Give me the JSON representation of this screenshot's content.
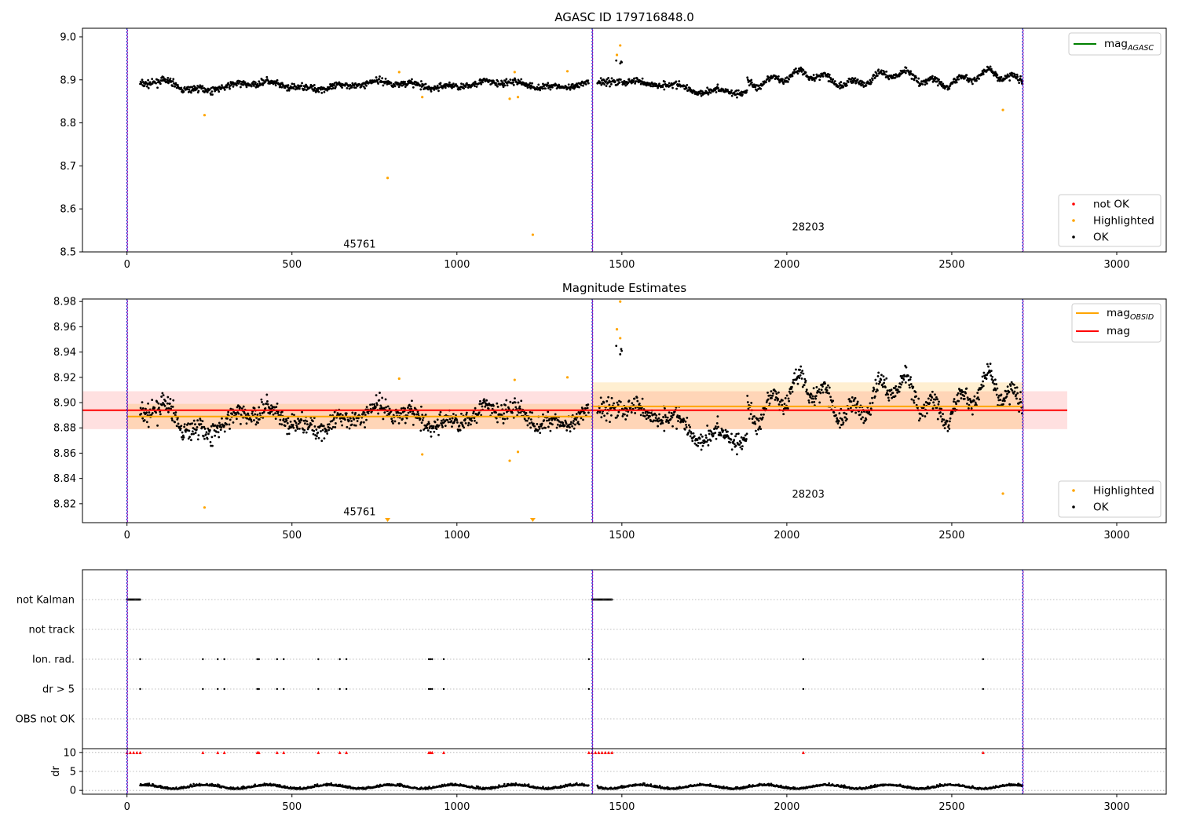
{
  "chart_data": [
    {
      "panel": "top",
      "type": "scatter",
      "title": "AGASC ID 179716848.0",
      "xlim": [
        -135,
        3150
      ],
      "ylim": [
        8.5,
        9.02
      ],
      "xticks": [
        0,
        500,
        1000,
        1500,
        2000,
        2500,
        3000
      ],
      "yticks": [
        "8.5",
        "8.6",
        "8.7",
        "8.8",
        "8.9",
        "9.0"
      ],
      "obsid_boundaries": [
        0,
        1410,
        2715
      ],
      "obsid_labels": [
        {
          "text": "45761",
          "x": 705,
          "y": 8.51
        },
        {
          "text": "28203",
          "x": 2065,
          "y": 8.55
        }
      ],
      "line_legend": [
        {
          "name": "mag",
          "sub": "AGASC",
          "color": "#008000"
        }
      ],
      "point_legend": [
        {
          "name": "not OK",
          "color": "#ff0000"
        },
        {
          "name": "Highlighted",
          "color": "#ffa500"
        },
        {
          "name": "OK",
          "color": "#000000"
        }
      ],
      "ok_series": {
        "description": "OK points",
        "x_start": [
          40,
          1425
        ],
        "segments": [
          {
            "x_range": [
              40,
              1400
            ],
            "mean": 8.89,
            "scatter": 0.01
          },
          {
            "x_range": [
              1425,
              1850
            ],
            "mean": 8.885,
            "scatter": 0.012
          },
          {
            "x_range": [
              1850,
              2715
            ],
            "mean": 8.91,
            "scatter": 0.014
          }
        ]
      },
      "highlighted": [
        {
          "x": 235,
          "y": 8.818
        },
        {
          "x": 790,
          "y": 8.672
        },
        {
          "x": 825,
          "y": 8.918
        },
        {
          "x": 895,
          "y": 8.86
        },
        {
          "x": 1160,
          "y": 8.856
        },
        {
          "x": 1175,
          "y": 8.918
        },
        {
          "x": 1185,
          "y": 8.86
        },
        {
          "x": 1230,
          "y": 8.54
        },
        {
          "x": 1335,
          "y": 8.92
        },
        {
          "x": 1485,
          "y": 8.958
        },
        {
          "x": 1495,
          "y": 8.98
        },
        {
          "x": 2655,
          "y": 8.83
        }
      ]
    },
    {
      "panel": "middle",
      "type": "scatter",
      "title": "Magnitude Estimates",
      "xlim": [
        -135,
        3150
      ],
      "ylim": [
        8.805,
        8.982
      ],
      "xticks": [
        0,
        500,
        1000,
        1500,
        2000,
        2500,
        3000
      ],
      "yticks": [
        "8.82",
        "8.84",
        "8.86",
        "8.88",
        "8.90",
        "8.92",
        "8.94",
        "8.96",
        "8.98"
      ],
      "obsid_boundaries": [
        0,
        1410,
        2715
      ],
      "obsid_labels": [
        {
          "text": "45761",
          "x": 705,
          "y": 8.811
        },
        {
          "text": "28203",
          "x": 2065,
          "y": 8.825
        }
      ],
      "line_legend": [
        {
          "name": "mag",
          "sub": "OBSID",
          "color": "#ffa500"
        },
        {
          "name": "mag",
          "sub": "",
          "color": "#ff0000"
        }
      ],
      "point_legend": [
        {
          "name": "Highlighted",
          "color": "#ffa500"
        },
        {
          "name": "OK",
          "color": "#000000"
        }
      ],
      "mag": {
        "value": 8.894,
        "band": [
          8.879,
          8.909
        ],
        "x_range": [
          -135,
          2850
        ]
      },
      "mag_obsid": [
        {
          "x_range": [
            0,
            1410
          ],
          "value": 8.889,
          "band": [
            8.879,
            8.899
          ]
        },
        {
          "x_range": [
            1410,
            2715
          ],
          "value": 8.897,
          "band": [
            8.879,
            8.916
          ]
        }
      ],
      "highlighted": [
        {
          "x": 235,
          "y": 8.817
        },
        {
          "x": 825,
          "y": 8.919
        },
        {
          "x": 895,
          "y": 8.859
        },
        {
          "x": 1160,
          "y": 8.854
        },
        {
          "x": 1175,
          "y": 8.918
        },
        {
          "x": 1185,
          "y": 8.861
        },
        {
          "x": 1335,
          "y": 8.92
        },
        {
          "x": 1485,
          "y": 8.958
        },
        {
          "x": 1495,
          "y": 8.98
        },
        {
          "x": 1495,
          "y": 8.951
        },
        {
          "x": 2655,
          "y": 8.828
        }
      ],
      "out_of_range_markers": [
        790,
        1230
      ]
    },
    {
      "panel": "flags",
      "type": "scatter",
      "xlim": [
        -135,
        3150
      ],
      "categories": [
        "not Kalman",
        "not track",
        "Ion. rad.",
        "dr > 5",
        "OBS not OK"
      ],
      "obsid_boundaries": [
        0,
        1410,
        2715
      ],
      "not_kalman": {
        "x_ranges": [
          [
            0,
            40
          ],
          [
            1410,
            1470
          ]
        ]
      },
      "ion_rad": [
        40,
        230,
        275,
        295,
        395,
        400,
        455,
        475,
        580,
        645,
        665,
        915,
        920,
        925,
        960,
        1400,
        2050,
        2595
      ],
      "dr_gt_5": [
        40,
        230,
        275,
        295,
        395,
        400,
        455,
        475,
        580,
        645,
        665,
        915,
        920,
        925,
        960,
        1400,
        2050,
        2595
      ]
    },
    {
      "panel": "dr",
      "type": "scatter",
      "xlim": [
        -135,
        3150
      ],
      "ylim": [
        -1,
        11
      ],
      "ylabel": "dr",
      "yticks": [
        "0",
        "5",
        "10"
      ],
      "xticks": [
        0,
        500,
        1000,
        1500,
        2000,
        2500,
        3000
      ],
      "obsid_boundaries": [
        0,
        1410,
        2715
      ],
      "clipped_value": 10,
      "clipped_x": [
        0,
        10,
        20,
        30,
        40,
        230,
        275,
        295,
        395,
        400,
        455,
        475,
        580,
        645,
        665,
        915,
        920,
        925,
        960,
        1400,
        1410,
        1420,
        1430,
        1440,
        1450,
        1460,
        1470,
        2050,
        2595
      ]
    }
  ]
}
